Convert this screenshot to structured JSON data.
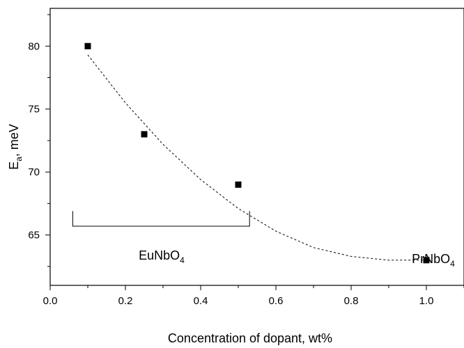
{
  "chart_data": {
    "type": "scatter",
    "xlabel": "Concentration of dopant, wt%",
    "ylabel": {
      "main": "E",
      "sub": "a",
      "rest": ", meV"
    },
    "xlim": [
      0.0,
      1.1
    ],
    "ylim": [
      61.0,
      83.0
    ],
    "x_ticks": [
      0.0,
      0.2,
      0.4,
      0.6,
      0.8,
      1.0
    ],
    "x_tick_labels": [
      "0.0",
      "0.2",
      "0.4",
      "0.6",
      "0.8",
      "1.0"
    ],
    "y_ticks": [
      65,
      70,
      75,
      80
    ],
    "y_tick_labels": [
      "65",
      "70",
      "75",
      "80"
    ],
    "series": [
      {
        "points": [
          {
            "x": 0.1,
            "y": 80
          },
          {
            "x": 0.25,
            "y": 73
          },
          {
            "x": 0.5,
            "y": 69
          },
          {
            "x": 1.0,
            "y": 63
          }
        ]
      }
    ],
    "fit_curve": {
      "style": "dashed",
      "points": [
        {
          "x": 0.1,
          "y": 79.3
        },
        {
          "x": 0.2,
          "y": 75.5
        },
        {
          "x": 0.3,
          "y": 72.2
        },
        {
          "x": 0.4,
          "y": 69.4
        },
        {
          "x": 0.5,
          "y": 67.1
        },
        {
          "x": 0.6,
          "y": 65.3
        },
        {
          "x": 0.7,
          "y": 64.0
        },
        {
          "x": 0.8,
          "y": 63.3
        },
        {
          "x": 0.9,
          "y": 63.0
        },
        {
          "x": 1.0,
          "y": 63.0
        }
      ]
    },
    "annotations": [
      {
        "id": "eunbo4",
        "text": {
          "main": "EuNbO",
          "sub": "4"
        },
        "bracket_x": [
          0.06,
          0.53
        ],
        "bracket_y": [
          66.9,
          65.7
        ]
      },
      {
        "id": "prnbo4",
        "text": {
          "main": "PrNbO",
          "sub": "4"
        }
      }
    ],
    "grid": false,
    "legend": "none"
  }
}
